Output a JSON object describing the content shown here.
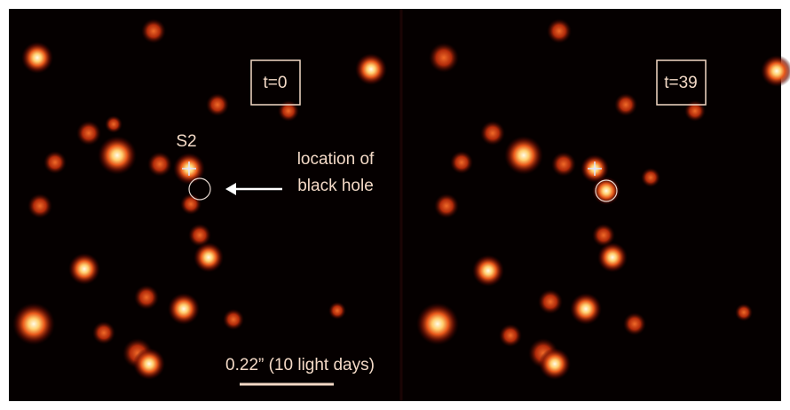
{
  "panels": [
    {
      "label": "t=0"
    },
    {
      "label": "t=39"
    }
  ],
  "annotations": {
    "star_label": "S2",
    "black_hole_label": [
      "location of",
      "black hole"
    ]
  },
  "scale_bar": "0.22” (10 light days)"
}
